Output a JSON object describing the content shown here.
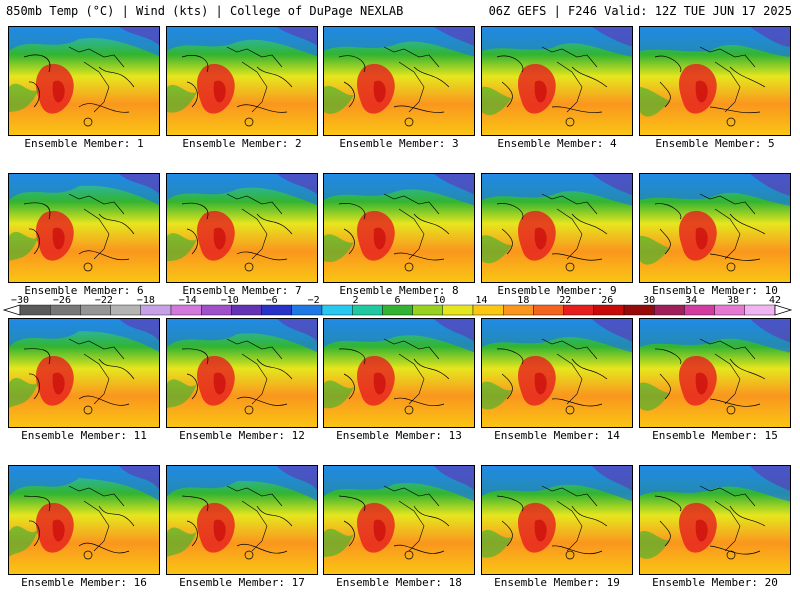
{
  "header": {
    "left": "850mb Temp (°C) | Wind (kts) | College of DuPage NEXLAB",
    "right": "06Z GEFS | F246 Valid: 12Z TUE JUN 17 2025"
  },
  "members": [
    "Ensemble Member: 1",
    "Ensemble Member: 2",
    "Ensemble Member: 3",
    "Ensemble Member: 4",
    "Ensemble Member: 5",
    "Ensemble Member: 6",
    "Ensemble Member: 7",
    "Ensemble Member: 8",
    "Ensemble Member: 9",
    "Ensemble Member: 10",
    "Ensemble Member: 11",
    "Ensemble Member: 12",
    "Ensemble Member: 13",
    "Ensemble Member: 14",
    "Ensemble Member: 15",
    "Ensemble Member: 16",
    "Ensemble Member: 17",
    "Ensemble Member: 18",
    "Ensemble Member: 19",
    "Ensemble Member: 20"
  ],
  "colorbar": {
    "labels": [
      "−30",
      "−26",
      "−22",
      "−18",
      "−14",
      "−10",
      "−6",
      "−2",
      "2",
      "6",
      "10",
      "14",
      "18",
      "22",
      "26",
      "30",
      "34",
      "38",
      "42"
    ],
    "colors": [
      "#5a5a5a",
      "#787878",
      "#969696",
      "#b4b4b4",
      "#c8a0e6",
      "#d278dc",
      "#a050c8",
      "#6432b4",
      "#2832c8",
      "#1e78e6",
      "#28c8f0",
      "#1ec8a0",
      "#32b432",
      "#96d21e",
      "#e6e61e",
      "#fac814",
      "#fa961e",
      "#f5641e",
      "#e61e1e",
      "#c80a0a",
      "#960a0a",
      "#a01e5a",
      "#d23ca0",
      "#e678d2",
      "#f0b4f0"
    ]
  }
}
